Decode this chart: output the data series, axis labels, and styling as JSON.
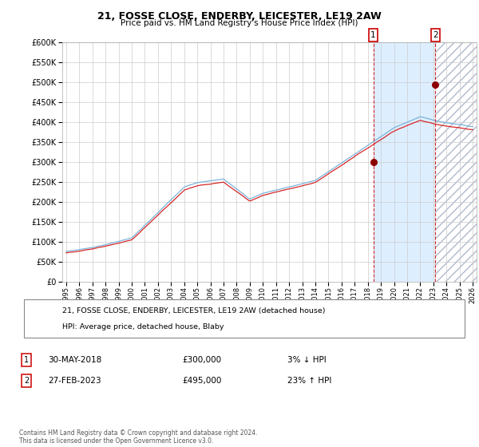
{
  "title": "21, FOSSE CLOSE, ENDERBY, LEICESTER, LE19 2AW",
  "subtitle": "Price paid vs. HM Land Registry's House Price Index (HPI)",
  "legend_line1": "21, FOSSE CLOSE, ENDERBY, LEICESTER, LE19 2AW (detached house)",
  "legend_line2": "HPI: Average price, detached house, Blaby",
  "transaction1_label": "1",
  "transaction1_date": "30-MAY-2018",
  "transaction1_price": 300000,
  "transaction1_pct": "3%",
  "transaction1_dir": "↓",
  "transaction2_label": "2",
  "transaction2_date": "27-FEB-2023",
  "transaction2_price": 495000,
  "transaction2_pct": "23%",
  "transaction2_dir": "↑",
  "footer": "Contains HM Land Registry data © Crown copyright and database right 2024.\nThis data is licensed under the Open Government Licence v3.0.",
  "hpi_color": "#7ab3d9",
  "price_color": "#d62728",
  "dot_color": "#8b0000",
  "vline_color": "#d62728",
  "bg_highlight_color": "#ddeeff",
  "ylim": [
    0,
    600000
  ],
  "yticks": [
    0,
    50000,
    100000,
    150000,
    200000,
    250000,
    300000,
    350000,
    400000,
    450000,
    500000,
    550000,
    600000
  ],
  "year_start": 1995,
  "year_end": 2026,
  "transaction1_year": 2018.416,
  "transaction2_year": 2023.16
}
